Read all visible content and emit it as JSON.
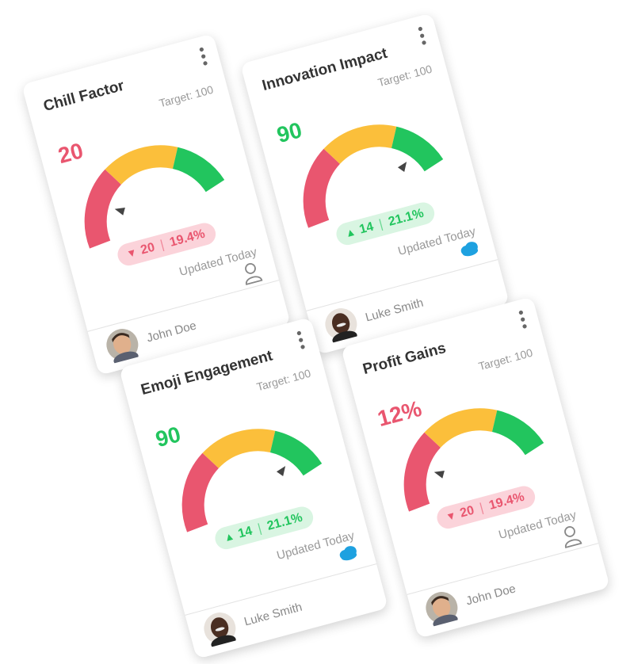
{
  "cards": [
    {
      "title": "Chill Factor",
      "target": "Target: 100",
      "value": "20",
      "change": "20",
      "percent": "19.4%",
      "updated": "Updated Today",
      "user": "John Doe",
      "trend": "down",
      "icon": "person"
    },
    {
      "title": "Innovation Impact",
      "target": "Target: 100",
      "value": "90",
      "change": "14",
      "percent": "21.1%",
      "updated": "Updated Today",
      "user": "Luke Smith",
      "trend": "up",
      "icon": "cloud"
    },
    {
      "title": "Emoji Engagement",
      "target": "Target: 100",
      "value": "90",
      "change": "14",
      "percent": "21.1%",
      "updated": "Updated Today",
      "user": "Luke Smith",
      "trend": "up",
      "icon": "cloud"
    },
    {
      "title": "Profit Gains",
      "target": "Target: 100",
      "value": "12%",
      "change": "20",
      "percent": "19.4%",
      "updated": "Updated Today",
      "user": "John Doe",
      "trend": "down",
      "icon": "person"
    }
  ]
}
